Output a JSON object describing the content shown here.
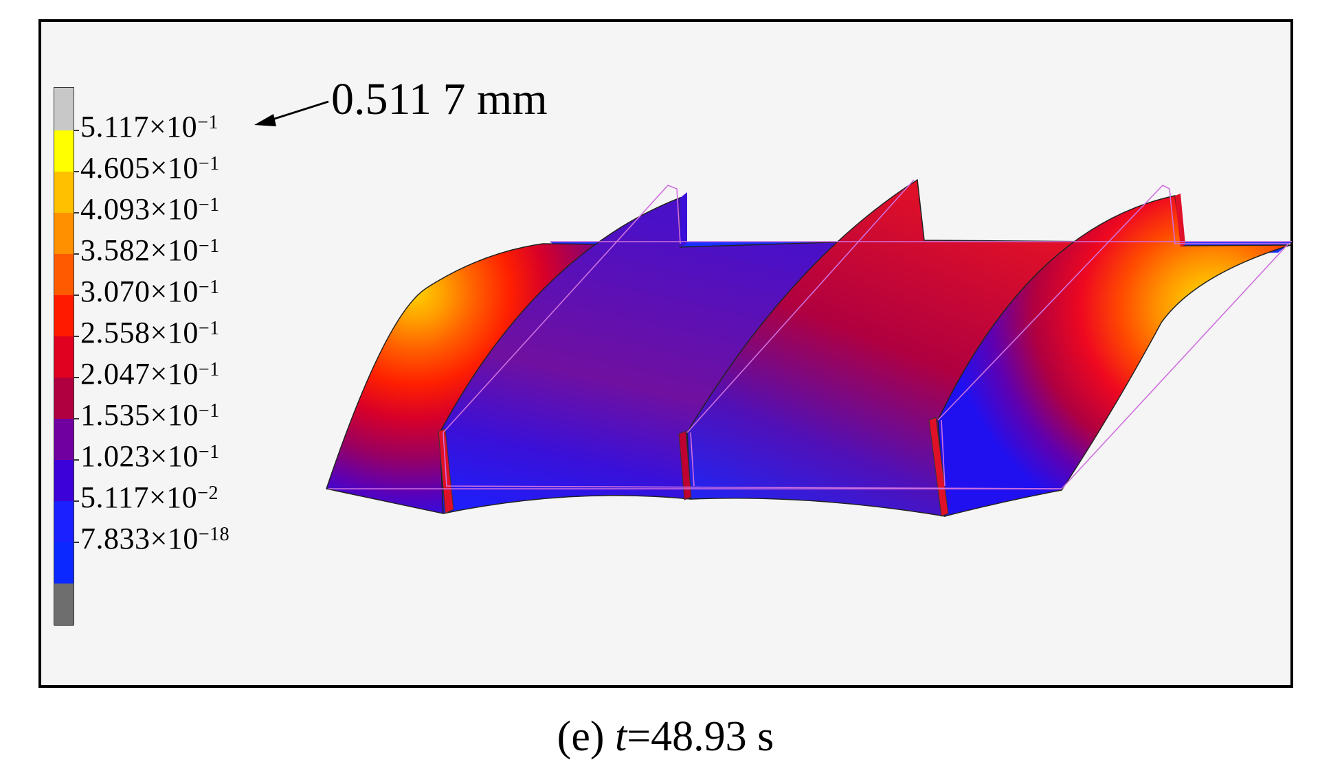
{
  "legend": {
    "levels": [
      {
        "label": "5.117×10",
        "exp": "−1",
        "color": "#c8c8c8"
      },
      {
        "label": "4.605×10",
        "exp": "−1",
        "color": "#ffff00"
      },
      {
        "label": "4.093×10",
        "exp": "−1",
        "color": "#ffc000"
      },
      {
        "label": "3.582×10",
        "exp": "−1",
        "color": "#ff9000"
      },
      {
        "label": "3.070×10",
        "exp": "−1",
        "color": "#ff5a00"
      },
      {
        "label": "2.558×10",
        "exp": "−1",
        "color": "#ff1a00"
      },
      {
        "label": "2.047×10",
        "exp": "−1",
        "color": "#e00020"
      },
      {
        "label": "1.535×10",
        "exp": "−1",
        "color": "#b00040"
      },
      {
        "label": "1.023×10",
        "exp": "−1",
        "color": "#7000a0"
      },
      {
        "label": "5.117×10",
        "exp": "−2",
        "color": "#3c00d8"
      },
      {
        "label": "7.833×10",
        "exp": "−18",
        "color": "#0a28ff"
      }
    ],
    "top_cap_color": "#c8c8c8",
    "bottom_cap_color": "#6e6e6e"
  },
  "max_annotation": "0.511 7 mm",
  "caption": {
    "prefix": "(e) ",
    "var": "t",
    "value": "=48.93 s"
  }
}
